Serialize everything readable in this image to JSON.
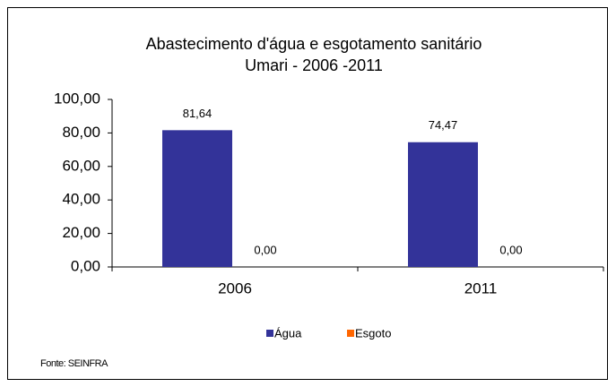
{
  "chart_data": {
    "type": "bar",
    "title": "Abastecimento d'água e esgotamento sanitário",
    "subtitle": "Umari - 2006 -2011",
    "categories": [
      "2006",
      "2011"
    ],
    "series": [
      {
        "name": "Água",
        "color": "#333399",
        "values": [
          81.64,
          74.47
        ],
        "value_labels": [
          "81,64",
          "74,47"
        ]
      },
      {
        "name": "Esgoto",
        "color": "#ff6600",
        "values": [
          0,
          0
        ],
        "value_labels": [
          "0,00",
          "0,00"
        ]
      }
    ],
    "ylim": [
      0,
      100
    ],
    "yticks": [
      {
        "value": 0,
        "label": "0,00"
      },
      {
        "value": 20,
        "label": "20,00"
      },
      {
        "value": 40,
        "label": "40,00"
      },
      {
        "value": 60,
        "label": "60,00"
      },
      {
        "value": 80,
        "label": "80,00"
      },
      {
        "value": 100,
        "label": "100,00"
      }
    ],
    "grid": false,
    "legend": "bottom",
    "source": "Fonte: SEINFRA"
  }
}
